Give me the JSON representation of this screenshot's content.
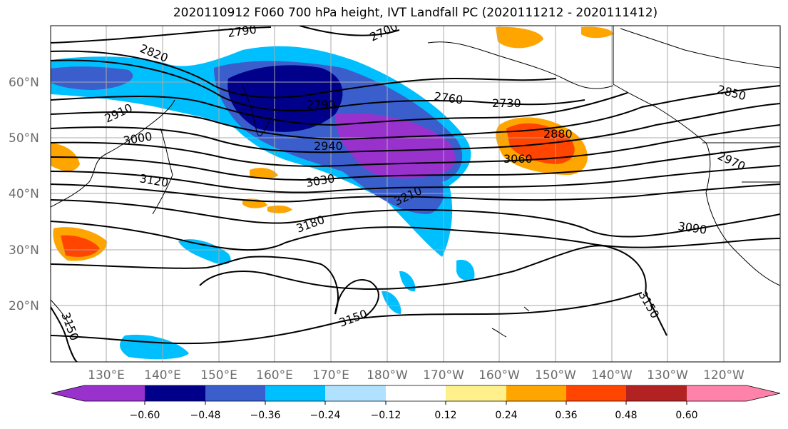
{
  "title": "2020110912 F060 700 hPa height, IVT Landfall PC (2020111212 - 2020111412)",
  "latitude_labels": [
    "60°N",
    "50°N",
    "40°N",
    "30°N",
    "20°N"
  ],
  "longitude_labels": [
    "130°E",
    "140°E",
    "150°E",
    "160°E",
    "170°E",
    "180°W",
    "170°W",
    "160°W",
    "150°W",
    "140°W",
    "130°W",
    "120°W"
  ],
  "contour_labels": [
    "2790",
    "2700",
    "2820",
    "2760",
    "2730",
    "2790",
    "2910",
    "2850",
    "2880",
    "3000",
    "2940",
    "3060",
    "2970",
    "3120",
    "3030",
    "3210",
    "3180",
    "3090",
    "3150",
    "3150",
    "3150"
  ],
  "colorbar": {
    "tick_labels": [
      "−0.60",
      "−0.48",
      "−0.36",
      "−0.24",
      "−0.12",
      "0.12",
      "0.24",
      "0.36",
      "0.48",
      "0.60"
    ],
    "colors": [
      "#9932cc",
      "#00008b",
      "#3a5fcd",
      "#00bfff",
      "#b0e2ff",
      "#ffffff",
      "#fff08c",
      "#ffa500",
      "#ff4500",
      "#b22222",
      "#ff82ab"
    ]
  },
  "colors": {
    "contour": "#000000",
    "gridline": "#a9a9a9",
    "coastline": "#000000"
  }
}
